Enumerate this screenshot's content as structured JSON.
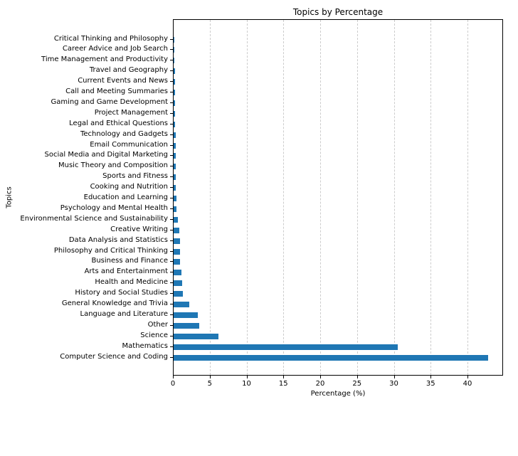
{
  "chart_data": {
    "type": "bar",
    "orientation": "horizontal",
    "title": "Topics by Percentage",
    "xlabel": "Percentage (%)",
    "ylabel": "Topics",
    "xlim": [
      0,
      44.8
    ],
    "xticks": [
      0,
      5,
      10,
      15,
      20,
      25,
      30,
      35,
      40
    ],
    "grid": "x dashed",
    "color": "#1f77b4",
    "categories": [
      "Computer Science and Coding",
      "Mathematics",
      "Science",
      "Other",
      "Language and Literature",
      "General Knowledge and Trivia",
      "History and Social Studies",
      "Health and Medicine",
      "Arts and Entertainment",
      "Business and Finance",
      "Philosophy and Critical Thinking",
      "Data Analysis and Statistics",
      "Creative Writing",
      "Environmental Science and Sustainability",
      "Psychology and Mental Health",
      "Education and Learning",
      "Cooking and Nutrition",
      "Sports and Fitness",
      "Music Theory and Composition",
      "Social Media and Digital Marketing",
      "Email Communication",
      "Technology and Gadgets",
      "Legal and Ethical Questions",
      "Project Management",
      "Gaming and Game Development",
      "Call and Meeting Summaries",
      "Current Events and News",
      "Travel and Geography",
      "Time Management and Productivity",
      "Career Advice and Job Search",
      "Critical Thinking and Philosophy"
    ],
    "values": [
      42.7,
      30.4,
      6.1,
      3.5,
      3.3,
      2.1,
      1.3,
      1.2,
      1.1,
      0.9,
      0.85,
      0.85,
      0.8,
      0.6,
      0.4,
      0.4,
      0.3,
      0.25,
      0.25,
      0.25,
      0.25,
      0.25,
      0.15,
      0.15,
      0.15,
      0.15,
      0.15,
      0.15,
      0.05,
      0.05,
      0.05
    ]
  }
}
